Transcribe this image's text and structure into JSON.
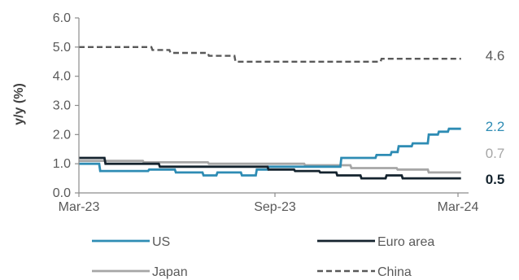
{
  "chart_data": {
    "type": "line",
    "title": "",
    "xlabel": "",
    "ylabel": "y/y (%)",
    "ylim": [
      0,
      6
    ],
    "yticks": [
      "0.0",
      "1.0",
      "2.0",
      "3.0",
      "4.0",
      "5.0",
      "6.0"
    ],
    "xlim": [
      "2023-03-01",
      "2024-03-31"
    ],
    "xticks": [
      {
        "date": "2023-03-01",
        "label": "Mar-23"
      },
      {
        "date": "2023-09-01",
        "label": "Sep-23"
      },
      {
        "date": "2024-03-01",
        "label": "Mar-24"
      }
    ],
    "grid": false,
    "legend_position": "bottom",
    "series": [
      {
        "name": "US",
        "color": "#2e8cb4",
        "dash": "solid",
        "end_label": "2.2",
        "points": [
          [
            "2023-03-01",
            1.0
          ],
          [
            "2023-03-20",
            1.0
          ],
          [
            "2023-03-21",
            0.75
          ],
          [
            "2023-05-05",
            0.75
          ],
          [
            "2023-05-06",
            0.8
          ],
          [
            "2023-05-30",
            0.8
          ],
          [
            "2023-05-31",
            0.7
          ],
          [
            "2023-06-25",
            0.7
          ],
          [
            "2023-06-26",
            0.6
          ],
          [
            "2023-07-08",
            0.6
          ],
          [
            "2023-07-09",
            0.7
          ],
          [
            "2023-07-31",
            0.7
          ],
          [
            "2023-08-01",
            0.6
          ],
          [
            "2023-08-14",
            0.6
          ],
          [
            "2023-08-15",
            0.8
          ],
          [
            "2023-08-25",
            0.8
          ],
          [
            "2023-08-26",
            0.9
          ],
          [
            "2023-11-05",
            0.9
          ],
          [
            "2023-11-06",
            1.2
          ],
          [
            "2023-12-10",
            1.2
          ],
          [
            "2023-12-11",
            1.3
          ],
          [
            "2023-12-25",
            1.3
          ],
          [
            "2023-12-26",
            1.4
          ],
          [
            "2024-01-01",
            1.4
          ],
          [
            "2024-01-02",
            1.6
          ],
          [
            "2024-01-15",
            1.6
          ],
          [
            "2024-01-16",
            1.7
          ],
          [
            "2024-01-31",
            1.7
          ],
          [
            "2024-02-01",
            2.0
          ],
          [
            "2024-02-10",
            2.0
          ],
          [
            "2024-02-11",
            2.1
          ],
          [
            "2024-02-20",
            2.1
          ],
          [
            "2024-02-21",
            2.2
          ],
          [
            "2024-03-04",
            2.2
          ]
        ]
      },
      {
        "name": "Euro area",
        "color": "#14232e",
        "dash": "solid",
        "end_label": "0.5",
        "points": [
          [
            "2023-03-01",
            1.2
          ],
          [
            "2023-03-25",
            1.2
          ],
          [
            "2023-03-26",
            1.0
          ],
          [
            "2023-05-15",
            1.0
          ],
          [
            "2023-05-16",
            0.9
          ],
          [
            "2023-08-25",
            0.9
          ],
          [
            "2023-08-26",
            0.8
          ],
          [
            "2023-09-20",
            0.8
          ],
          [
            "2023-09-21",
            0.75
          ],
          [
            "2023-10-15",
            0.75
          ],
          [
            "2023-10-16",
            0.7
          ],
          [
            "2023-11-01",
            0.7
          ],
          [
            "2023-11-02",
            0.6
          ],
          [
            "2023-11-25",
            0.6
          ],
          [
            "2023-11-26",
            0.5
          ],
          [
            "2023-12-20",
            0.5
          ],
          [
            "2023-12-21",
            0.6
          ],
          [
            "2024-01-05",
            0.6
          ],
          [
            "2024-01-06",
            0.5
          ],
          [
            "2024-03-04",
            0.5
          ]
        ]
      },
      {
        "name": "Japan",
        "color": "#a6a6a6",
        "dash": "solid",
        "end_label": "0.7",
        "points": [
          [
            "2023-03-01",
            1.1
          ],
          [
            "2023-04-30",
            1.1
          ],
          [
            "2023-05-01",
            1.05
          ],
          [
            "2023-06-30",
            1.05
          ],
          [
            "2023-07-01",
            1.0
          ],
          [
            "2023-09-30",
            1.0
          ],
          [
            "2023-10-01",
            0.95
          ],
          [
            "2023-11-15",
            0.95
          ],
          [
            "2023-11-16",
            0.85
          ],
          [
            "2023-12-31",
            0.85
          ],
          [
            "2024-01-01",
            0.8
          ],
          [
            "2024-01-31",
            0.8
          ],
          [
            "2024-02-01",
            0.7
          ],
          [
            "2024-03-04",
            0.7
          ]
        ]
      },
      {
        "name": "China",
        "color": "#595959",
        "dash": "dashed",
        "end_label": "4.6",
        "points": [
          [
            "2023-03-01",
            5.0
          ],
          [
            "2023-05-08",
            5.0
          ],
          [
            "2023-05-09",
            4.9
          ],
          [
            "2023-05-25",
            4.9
          ],
          [
            "2023-05-26",
            4.8
          ],
          [
            "2023-06-30",
            4.8
          ],
          [
            "2023-07-01",
            4.7
          ],
          [
            "2023-07-25",
            4.7
          ],
          [
            "2023-07-26",
            4.5
          ],
          [
            "2023-12-15",
            4.5
          ],
          [
            "2023-12-16",
            4.6
          ],
          [
            "2024-03-04",
            4.6
          ]
        ]
      }
    ]
  }
}
